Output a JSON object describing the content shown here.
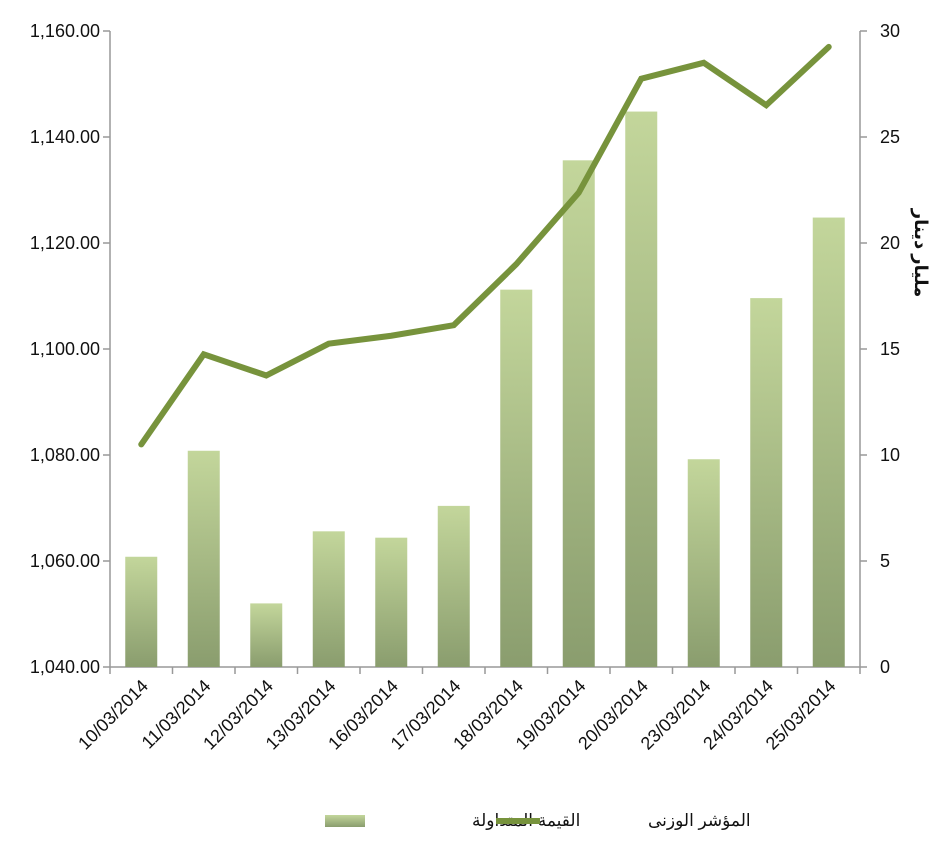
{
  "chart_data": {
    "type": "bar",
    "categories": [
      "10/03/2014",
      "11/03/2014",
      "12/03/2014",
      "13/03/2014",
      "16/03/2014",
      "17/03/2014",
      "18/03/2014",
      "19/03/2014",
      "20/03/2014",
      "23/03/2014",
      "24/03/2014",
      "25/03/2014"
    ],
    "series": [
      {
        "name": "القيمة المتداولة",
        "kind": "bar",
        "axis": "right",
        "values": [
          5.2,
          10.2,
          3.0,
          6.4,
          6.1,
          7.6,
          17.8,
          23.9,
          26.2,
          9.8,
          17.4,
          21.2
        ]
      },
      {
        "name": "المؤشر الوزنى",
        "kind": "line",
        "axis": "left",
        "values": [
          1082.0,
          1099.0,
          1095.0,
          1101.0,
          1102.5,
          1104.5,
          1116.0,
          1129.5,
          1151.0,
          1154.0,
          1146.0,
          1157.0
        ]
      }
    ],
    "left_axis": {
      "ylim": [
        1040,
        1160
      ],
      "ticks": [
        "1,040.00",
        "1,060.00",
        "1,080.00",
        "1,100.00",
        "1,120.00",
        "1,140.00",
        "1,160.00"
      ],
      "tick_values": [
        1040,
        1060,
        1080,
        1100,
        1120,
        1140,
        1160
      ]
    },
    "right_axis": {
      "ylim": [
        0,
        30
      ],
      "ticks": [
        "0",
        "5",
        "10",
        "15",
        "20",
        "25",
        "30"
      ],
      "tick_values": [
        0,
        5,
        10,
        15,
        20,
        25,
        30
      ],
      "label": "مليار دينار"
    },
    "title": "",
    "xlabel": "",
    "legend_position": "bottom-center",
    "colors": {
      "line": "#77933C",
      "bar_top": "#C3D69B",
      "bar_bottom": "#8A9D6E",
      "axis": "#999999"
    }
  }
}
